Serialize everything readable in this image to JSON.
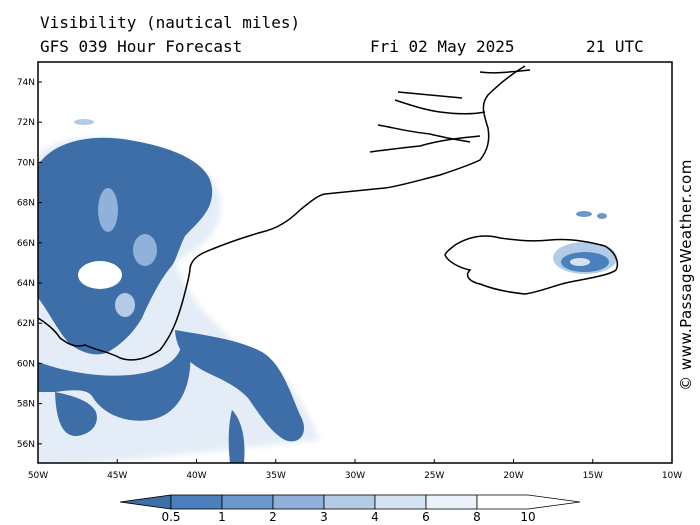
{
  "title": {
    "line1": "Visibility (nautical miles)",
    "model": "GFS 039 Hour Forecast",
    "date": "Fri 02 May 2025",
    "time": "21 UTC"
  },
  "credit": "© www.PassageWeather.com",
  "map": {
    "lon_labels": [
      "50W",
      "45W",
      "40W",
      "35W",
      "30W",
      "25W",
      "20W",
      "15W",
      "10W"
    ],
    "lat_labels": [
      "74N",
      "72N",
      "70N",
      "68N",
      "66N",
      "64N",
      "62N",
      "60N",
      "58N",
      "56N"
    ]
  },
  "colorbar": {
    "labels": [
      "0.5",
      "1",
      "2",
      "3",
      "4",
      "6",
      "8",
      "10"
    ],
    "colors": [
      "#3d6ea8",
      "#4a80bd",
      "#6a97cc",
      "#8fb1da",
      "#b3cbe6",
      "#d4e2f2",
      "#ecf2f9",
      "#ffffff"
    ]
  },
  "colors": {
    "fog_dense": "#3d6ea8",
    "fog_mid": "#6a97cc",
    "fog_light": "#d4e2f2",
    "coast": "#000000"
  }
}
